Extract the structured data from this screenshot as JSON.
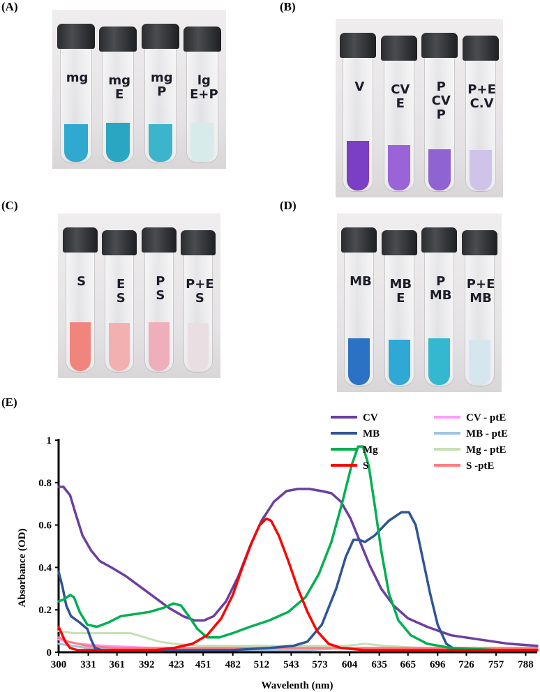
{
  "panels": {
    "a": {
      "label": "(A)",
      "tubes": [
        {
          "text": "mg",
          "liquid": "#2fa9cf",
          "level": 0.32
        },
        {
          "text": "mg\nE",
          "liquid": "#2ba6c2",
          "level": 0.34
        },
        {
          "text": "mg\nP",
          "liquid": "#3cb4cc",
          "level": 0.32
        },
        {
          "text": "lg\nE+P",
          "liquid": "#d7ecea",
          "level": 0.34
        }
      ]
    },
    "b": {
      "label": "(B)",
      "tubes": [
        {
          "text": "V",
          "liquid": "#7a3fc4",
          "level": 0.36
        },
        {
          "text": "CV\nE",
          "liquid": "#9a63d8",
          "level": 0.34
        },
        {
          "text": "P\nCV\nP",
          "liquid": "#8f63d2",
          "level": 0.3
        },
        {
          "text": "P+E\nC.V",
          "liquid": "#cfc3ea",
          "level": 0.3
        }
      ]
    },
    "c": {
      "label": "(C)",
      "tubes": [
        {
          "text": "S",
          "liquid": "#f0857e",
          "level": 0.4
        },
        {
          "text": "E\nS",
          "liquid": "#f3b0b0",
          "level": 0.4
        },
        {
          "text": "P\nS",
          "liquid": "#eeaebb",
          "level": 0.4
        },
        {
          "text": "P+E\nS",
          "liquid": "#e9dfe3",
          "level": 0.4
        }
      ]
    },
    "d": {
      "label": "(D)",
      "tubes": [
        {
          "text": "MB",
          "liquid": "#2b72c4",
          "level": 0.34
        },
        {
          "text": "MB\nE",
          "liquid": "#2fa8d6",
          "level": 0.34
        },
        {
          "text": "P\nMB",
          "liquid": "#33b8d0",
          "level": 0.34
        },
        {
          "text": "P+E\nMB",
          "liquid": "#d5e6ee",
          "level": 0.34
        }
      ]
    }
  },
  "chart_data": {
    "type": "line",
    "panel_label": "(E)",
    "xlabel": "Wavelenth (nm)",
    "ylabel": "Absorbance (OD)",
    "xlim": [
      300,
      800
    ],
    "ylim": [
      0,
      1
    ],
    "x_ticks": [
      "300",
      "331",
      "361",
      "392",
      "423",
      "451",
      "482",
      "512",
      "543",
      "573",
      "604",
      "635",
      "665",
      "696",
      "726",
      "757",
      "788"
    ],
    "y_ticks": [
      "0",
      "0.2",
      "0.4",
      "0.6",
      "0.8",
      "1"
    ],
    "grid": false,
    "legend_position": "top-right",
    "series": [
      {
        "name": "CV",
        "color": "#6b3fa0",
        "points": [
          [
            300,
            0.78
          ],
          [
            305,
            0.78
          ],
          [
            312,
            0.74
          ],
          [
            318,
            0.65
          ],
          [
            325,
            0.55
          ],
          [
            334,
            0.48
          ],
          [
            343,
            0.43
          ],
          [
            355,
            0.4
          ],
          [
            370,
            0.36
          ],
          [
            385,
            0.31
          ],
          [
            400,
            0.26
          ],
          [
            415,
            0.21
          ],
          [
            430,
            0.17
          ],
          [
            442,
            0.15
          ],
          [
            452,
            0.15
          ],
          [
            462,
            0.17
          ],
          [
            475,
            0.24
          ],
          [
            488,
            0.36
          ],
          [
            500,
            0.5
          ],
          [
            512,
            0.62
          ],
          [
            525,
            0.71
          ],
          [
            538,
            0.76
          ],
          [
            550,
            0.77
          ],
          [
            562,
            0.77
          ],
          [
            575,
            0.76
          ],
          [
            585,
            0.75
          ],
          [
            595,
            0.71
          ],
          [
            605,
            0.63
          ],
          [
            615,
            0.52
          ],
          [
            625,
            0.41
          ],
          [
            637,
            0.3
          ],
          [
            650,
            0.22
          ],
          [
            665,
            0.16
          ],
          [
            685,
            0.12
          ],
          [
            710,
            0.08
          ],
          [
            740,
            0.06
          ],
          [
            770,
            0.04
          ],
          [
            800,
            0.03
          ]
        ]
      },
      {
        "name": "MB",
        "color": "#2f5597",
        "points": [
          [
            300,
            0.38
          ],
          [
            304,
            0.31
          ],
          [
            308,
            0.22
          ],
          [
            313,
            0.17
          ],
          [
            322,
            0.14
          ],
          [
            330,
            0.11
          ],
          [
            334,
            0.06
          ],
          [
            338,
            0.02
          ],
          [
            345,
            0.01
          ],
          [
            400,
            0.01
          ],
          [
            480,
            0.01
          ],
          [
            520,
            0.02
          ],
          [
            545,
            0.03
          ],
          [
            560,
            0.05
          ],
          [
            575,
            0.13
          ],
          [
            590,
            0.3
          ],
          [
            600,
            0.45
          ],
          [
            608,
            0.53
          ],
          [
            614,
            0.53
          ],
          [
            620,
            0.52
          ],
          [
            630,
            0.55
          ],
          [
            645,
            0.62
          ],
          [
            658,
            0.66
          ],
          [
            666,
            0.66
          ],
          [
            673,
            0.6
          ],
          [
            680,
            0.45
          ],
          [
            688,
            0.28
          ],
          [
            696,
            0.13
          ],
          [
            705,
            0.04
          ],
          [
            715,
            0.01
          ],
          [
            760,
            0.01
          ],
          [
            800,
            0.01
          ]
        ]
      },
      {
        "name": "Mg",
        "color": "#00b050",
        "points": [
          [
            300,
            0.24
          ],
          [
            306,
            0.25
          ],
          [
            312,
            0.27
          ],
          [
            316,
            0.26
          ],
          [
            322,
            0.19
          ],
          [
            330,
            0.13
          ],
          [
            340,
            0.12
          ],
          [
            352,
            0.14
          ],
          [
            365,
            0.17
          ],
          [
            380,
            0.18
          ],
          [
            395,
            0.19
          ],
          [
            410,
            0.21
          ],
          [
            420,
            0.23
          ],
          [
            428,
            0.22
          ],
          [
            436,
            0.17
          ],
          [
            445,
            0.11
          ],
          [
            455,
            0.07
          ],
          [
            468,
            0.07
          ],
          [
            482,
            0.09
          ],
          [
            500,
            0.12
          ],
          [
            520,
            0.15
          ],
          [
            540,
            0.19
          ],
          [
            558,
            0.26
          ],
          [
            572,
            0.37
          ],
          [
            585,
            0.52
          ],
          [
            596,
            0.7
          ],
          [
            606,
            0.88
          ],
          [
            613,
            0.97
          ],
          [
            618,
            0.97
          ],
          [
            624,
            0.88
          ],
          [
            630,
            0.7
          ],
          [
            637,
            0.48
          ],
          [
            645,
            0.28
          ],
          [
            655,
            0.15
          ],
          [
            668,
            0.08
          ],
          [
            685,
            0.04
          ],
          [
            710,
            0.02
          ],
          [
            760,
            0.01
          ],
          [
            800,
            0.01
          ]
        ]
      },
      {
        "name": "S",
        "color": "#ff0000",
        "points": [
          [
            300,
            0.12
          ],
          [
            303,
            0.09
          ],
          [
            307,
            0.05
          ],
          [
            312,
            0.02
          ],
          [
            320,
            0.01
          ],
          [
            360,
            0.01
          ],
          [
            400,
            0.01
          ],
          [
            420,
            0.02
          ],
          [
            440,
            0.04
          ],
          [
            455,
            0.08
          ],
          [
            470,
            0.16
          ],
          [
            482,
            0.27
          ],
          [
            492,
            0.4
          ],
          [
            502,
            0.52
          ],
          [
            510,
            0.6
          ],
          [
            517,
            0.63
          ],
          [
            522,
            0.62
          ],
          [
            530,
            0.55
          ],
          [
            540,
            0.43
          ],
          [
            550,
            0.3
          ],
          [
            560,
            0.19
          ],
          [
            570,
            0.1
          ],
          [
            582,
            0.04
          ],
          [
            595,
            0.02
          ],
          [
            620,
            0.01
          ],
          [
            700,
            0.01
          ],
          [
            800,
            0.01
          ]
        ]
      },
      {
        "name": "CV - ptE",
        "color": "#ff99ff",
        "points": [
          [
            300,
            0.06
          ],
          [
            320,
            0.04
          ],
          [
            350,
            0.03
          ],
          [
            400,
            0.02
          ],
          [
            450,
            0.02
          ],
          [
            500,
            0.02
          ],
          [
            550,
            0.02
          ],
          [
            600,
            0.02
          ],
          [
            650,
            0.02
          ],
          [
            700,
            0.02
          ],
          [
            800,
            0.01
          ]
        ]
      },
      {
        "name": "MB - ptE",
        "color": "#9dc3e6",
        "points": [
          [
            300,
            0.04
          ],
          [
            330,
            0.02
          ],
          [
            400,
            0.01
          ],
          [
            500,
            0.01
          ],
          [
            560,
            0.01
          ],
          [
            600,
            0.02
          ],
          [
            640,
            0.02
          ],
          [
            670,
            0.02
          ],
          [
            700,
            0.01
          ],
          [
            800,
            0.01
          ]
        ]
      },
      {
        "name": "Mg - ptE",
        "color": "#c5e0b4",
        "points": [
          [
            300,
            0.1
          ],
          [
            315,
            0.09
          ],
          [
            330,
            0.09
          ],
          [
            345,
            0.09
          ],
          [
            360,
            0.09
          ],
          [
            375,
            0.09
          ],
          [
            390,
            0.07
          ],
          [
            405,
            0.05
          ],
          [
            420,
            0.04
          ],
          [
            450,
            0.03
          ],
          [
            500,
            0.03
          ],
          [
            550,
            0.03
          ],
          [
            600,
            0.03
          ],
          [
            620,
            0.04
          ],
          [
            640,
            0.03
          ],
          [
            680,
            0.02
          ],
          [
            740,
            0.02
          ],
          [
            800,
            0.02
          ]
        ]
      },
      {
        "name": "S -ptE",
        "color": "#ff7c80",
        "points": [
          [
            300,
            0.07
          ],
          [
            310,
            0.05
          ],
          [
            330,
            0.03
          ],
          [
            360,
            0.02
          ],
          [
            420,
            0.02
          ],
          [
            480,
            0.02
          ],
          [
            520,
            0.02
          ],
          [
            560,
            0.02
          ],
          [
            620,
            0.02
          ],
          [
            700,
            0.02
          ],
          [
            800,
            0.02
          ]
        ]
      }
    ]
  }
}
